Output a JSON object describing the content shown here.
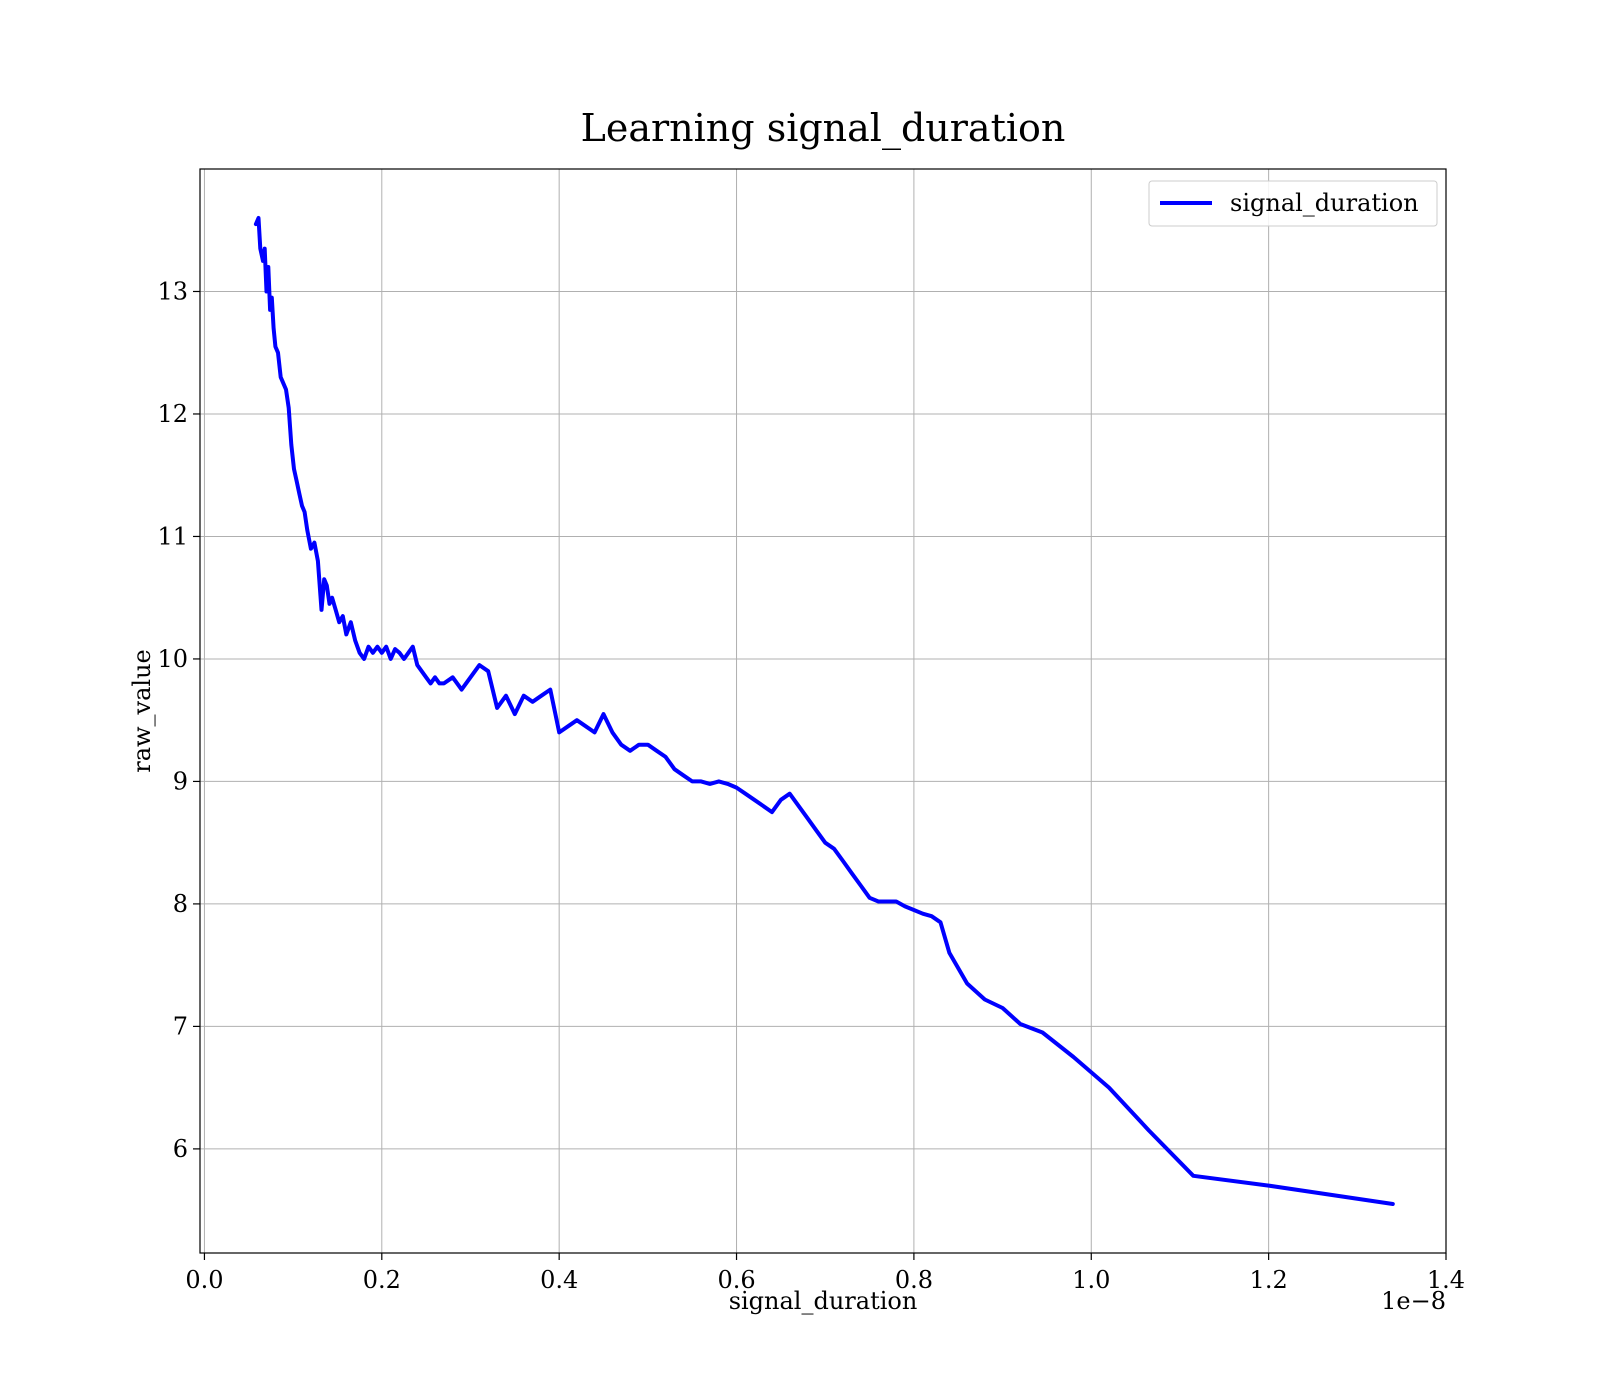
{
  "chart_data": {
    "type": "line",
    "title": "Learning signal_duration",
    "xlabel": "signal_duration",
    "ylabel": "raw_value",
    "x_offset_text": "1e−8",
    "xlim": [
      -0.005,
      1.4
    ],
    "ylim": [
      5.15,
      14.0
    ],
    "x_ticks": [
      0.0,
      0.2,
      0.4,
      0.6,
      0.8,
      1.0,
      1.2,
      1.4
    ],
    "x_tick_labels": [
      "0.0",
      "0.2",
      "0.4",
      "0.6",
      "0.8",
      "1.0",
      "1.2",
      "1.4"
    ],
    "y_ticks": [
      6,
      7,
      8,
      9,
      10,
      11,
      12,
      13
    ],
    "y_tick_labels": [
      "6",
      "7",
      "8",
      "9",
      "10",
      "11",
      "12",
      "13"
    ],
    "grid": true,
    "legend_position": "top-right",
    "series_color": "#0000ff",
    "series": [
      {
        "name": "signal_duration",
        "x": [
          0.058,
          0.061,
          0.063,
          0.066,
          0.068,
          0.07,
          0.072,
          0.074,
          0.076,
          0.078,
          0.08,
          0.083,
          0.086,
          0.089,
          0.092,
          0.095,
          0.098,
          0.101,
          0.104,
          0.107,
          0.11,
          0.113,
          0.116,
          0.12,
          0.124,
          0.128,
          0.132,
          0.135,
          0.138,
          0.141,
          0.144,
          0.148,
          0.152,
          0.156,
          0.16,
          0.165,
          0.17,
          0.175,
          0.18,
          0.185,
          0.19,
          0.195,
          0.2,
          0.205,
          0.21,
          0.215,
          0.22,
          0.225,
          0.23,
          0.235,
          0.24,
          0.245,
          0.25,
          0.255,
          0.26,
          0.265,
          0.27,
          0.28,
          0.29,
          0.3,
          0.31,
          0.32,
          0.33,
          0.34,
          0.35,
          0.36,
          0.37,
          0.38,
          0.39,
          0.4,
          0.41,
          0.42,
          0.43,
          0.44,
          0.45,
          0.46,
          0.47,
          0.48,
          0.49,
          0.5,
          0.51,
          0.52,
          0.53,
          0.54,
          0.55,
          0.56,
          0.57,
          0.58,
          0.59,
          0.6,
          0.61,
          0.62,
          0.63,
          0.64,
          0.65,
          0.66,
          0.67,
          0.68,
          0.69,
          0.7,
          0.71,
          0.72,
          0.73,
          0.74,
          0.75,
          0.76,
          0.78,
          0.79,
          0.8,
          0.81,
          0.82,
          0.83,
          0.84,
          0.86,
          0.88,
          0.9,
          0.92,
          0.945,
          0.98,
          1.02,
          1.065,
          1.115,
          1.2,
          1.34
        ],
        "y": [
          13.55,
          13.6,
          13.35,
          13.25,
          13.35,
          13.0,
          13.2,
          12.85,
          12.95,
          12.7,
          12.55,
          12.5,
          12.3,
          12.25,
          12.2,
          12.05,
          11.75,
          11.55,
          11.45,
          11.35,
          11.25,
          11.2,
          11.05,
          10.9,
          10.95,
          10.8,
          10.4,
          10.65,
          10.6,
          10.45,
          10.5,
          10.4,
          10.3,
          10.35,
          10.2,
          10.3,
          10.15,
          10.05,
          10.0,
          10.1,
          10.05,
          10.1,
          10.05,
          10.1,
          10.0,
          10.08,
          10.05,
          10.0,
          10.05,
          10.1,
          9.95,
          9.9,
          9.85,
          9.8,
          9.85,
          9.8,
          9.8,
          9.85,
          9.75,
          9.85,
          9.95,
          9.9,
          9.6,
          9.7,
          9.55,
          9.7,
          9.65,
          9.7,
          9.75,
          9.4,
          9.45,
          9.5,
          9.45,
          9.4,
          9.55,
          9.4,
          9.3,
          9.25,
          9.3,
          9.3,
          9.25,
          9.2,
          9.1,
          9.05,
          9.0,
          9.0,
          8.98,
          9.0,
          8.98,
          8.95,
          8.9,
          8.85,
          8.8,
          8.75,
          8.85,
          8.9,
          8.8,
          8.7,
          8.6,
          8.5,
          8.45,
          8.35,
          8.25,
          8.15,
          8.05,
          8.02,
          8.02,
          7.98,
          7.95,
          7.92,
          7.9,
          7.85,
          7.6,
          7.35,
          7.22,
          7.15,
          7.02,
          6.95,
          6.75,
          6.5,
          6.15,
          5.78,
          5.7,
          5.55
        ]
      }
    ]
  }
}
